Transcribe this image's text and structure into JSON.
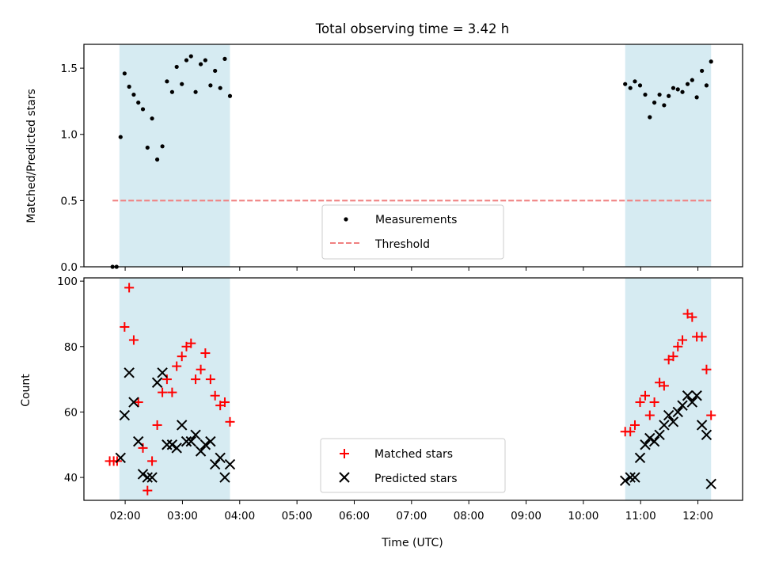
{
  "chart_data": [
    {
      "type": "scatter",
      "title": "Total observing time = 3.42 h",
      "ylabel": "Matched/Predicted stars",
      "ylim": [
        0,
        1.68
      ],
      "yticks": [
        "0.0",
        "0.5",
        "1.0",
        "1.5"
      ],
      "xlim": [
        1.28,
        12.78
      ],
      "observing_windows": [
        [
          1.9,
          3.83
        ],
        [
          10.73,
          12.23
        ]
      ],
      "threshold": {
        "value": 0.5,
        "color": "#f08080",
        "x_range": [
          1.78,
          12.23
        ]
      },
      "legend_position": "lower-center",
      "series": [
        {
          "name": "Measurements",
          "color": "#000000",
          "points": [
            [
              1.78,
              0.0
            ],
            [
              1.85,
              0.0
            ],
            [
              1.92,
              0.98
            ],
            [
              1.99,
              1.46
            ],
            [
              2.07,
              1.36
            ],
            [
              2.15,
              1.3
            ],
            [
              2.23,
              1.24
            ],
            [
              2.31,
              1.19
            ],
            [
              2.39,
              0.9
            ],
            [
              2.47,
              1.12
            ],
            [
              2.56,
              0.81
            ],
            [
              2.65,
              0.91
            ],
            [
              2.73,
              1.4
            ],
            [
              2.82,
              1.32
            ],
            [
              2.9,
              1.51
            ],
            [
              2.99,
              1.38
            ],
            [
              3.07,
              1.56
            ],
            [
              3.15,
              1.59
            ],
            [
              3.23,
              1.32
            ],
            [
              3.32,
              1.53
            ],
            [
              3.4,
              1.56
            ],
            [
              3.49,
              1.37
            ],
            [
              3.57,
              1.48
            ],
            [
              3.66,
              1.35
            ],
            [
              3.74,
              1.57
            ],
            [
              3.83,
              1.29
            ],
            [
              10.73,
              1.38
            ],
            [
              10.82,
              1.35
            ],
            [
              10.9,
              1.4
            ],
            [
              10.99,
              1.37
            ],
            [
              11.08,
              1.3
            ],
            [
              11.16,
              1.13
            ],
            [
              11.24,
              1.24
            ],
            [
              11.33,
              1.3
            ],
            [
              11.41,
              1.22
            ],
            [
              11.49,
              1.29
            ],
            [
              11.57,
              1.35
            ],
            [
              11.65,
              1.34
            ],
            [
              11.73,
              1.32
            ],
            [
              11.82,
              1.38
            ],
            [
              11.9,
              1.41
            ],
            [
              11.98,
              1.28
            ],
            [
              12.07,
              1.48
            ],
            [
              12.15,
              1.37
            ],
            [
              12.23,
              1.55
            ]
          ]
        },
        {
          "name": "Threshold",
          "color": "#f08080",
          "style": "dashed",
          "values": [
            0.5
          ]
        }
      ]
    },
    {
      "type": "scatter",
      "ylabel": "Count",
      "xlabel": "Time (UTC)",
      "ylim": [
        33,
        101
      ],
      "yticks": [
        "40",
        "60",
        "80",
        "100"
      ],
      "xlim": [
        1.28,
        12.78
      ],
      "xticks": [
        "02:00",
        "03:00",
        "04:00",
        "05:00",
        "06:00",
        "07:00",
        "08:00",
        "09:00",
        "10:00",
        "11:00",
        "12:00"
      ],
      "observing_windows": [
        [
          1.9,
          3.83
        ],
        [
          10.73,
          12.23
        ]
      ],
      "legend_position": "lower-center",
      "series": [
        {
          "name": "Matched stars",
          "color": "#ff0000",
          "marker": "+",
          "points": [
            [
              1.73,
              45
            ],
            [
              1.8,
              45
            ],
            [
              1.86,
              45
            ],
            [
              1.99,
              86
            ],
            [
              2.07,
              98
            ],
            [
              2.15,
              82
            ],
            [
              2.23,
              63
            ],
            [
              2.31,
              49
            ],
            [
              2.39,
              36
            ],
            [
              2.47,
              45
            ],
            [
              2.56,
              56
            ],
            [
              2.65,
              66
            ],
            [
              2.73,
              70
            ],
            [
              2.82,
              66
            ],
            [
              2.9,
              74
            ],
            [
              2.99,
              77
            ],
            [
              3.07,
              80
            ],
            [
              3.15,
              81
            ],
            [
              3.23,
              70
            ],
            [
              3.32,
              73
            ],
            [
              3.4,
              78
            ],
            [
              3.49,
              70
            ],
            [
              3.57,
              65
            ],
            [
              3.66,
              62
            ],
            [
              3.74,
              63
            ],
            [
              3.83,
              57
            ],
            [
              10.73,
              54
            ],
            [
              10.82,
              54
            ],
            [
              10.9,
              56
            ],
            [
              10.99,
              63
            ],
            [
              11.08,
              65
            ],
            [
              11.16,
              59
            ],
            [
              11.24,
              63
            ],
            [
              11.33,
              69
            ],
            [
              11.41,
              68
            ],
            [
              11.49,
              76
            ],
            [
              11.57,
              77
            ],
            [
              11.65,
              80
            ],
            [
              11.73,
              82
            ],
            [
              11.82,
              90
            ],
            [
              11.9,
              89
            ],
            [
              11.98,
              83
            ],
            [
              12.07,
              83
            ],
            [
              12.15,
              73
            ],
            [
              12.23,
              59
            ]
          ]
        },
        {
          "name": "Predicted stars",
          "color": "#000000",
          "marker": "x",
          "points": [
            [
              1.92,
              46
            ],
            [
              1.99,
              59
            ],
            [
              2.07,
              72
            ],
            [
              2.15,
              63
            ],
            [
              2.23,
              51
            ],
            [
              2.31,
              41
            ],
            [
              2.39,
              40
            ],
            [
              2.47,
              40
            ],
            [
              2.56,
              69
            ],
            [
              2.65,
              72
            ],
            [
              2.73,
              50
            ],
            [
              2.82,
              50
            ],
            [
              2.9,
              49
            ],
            [
              2.99,
              56
            ],
            [
              3.07,
              51
            ],
            [
              3.15,
              51
            ],
            [
              3.23,
              53
            ],
            [
              3.32,
              48
            ],
            [
              3.4,
              50
            ],
            [
              3.49,
              51
            ],
            [
              3.57,
              44
            ],
            [
              3.66,
              46
            ],
            [
              3.74,
              40
            ],
            [
              3.83,
              44
            ],
            [
              10.73,
              39
            ],
            [
              10.82,
              40
            ],
            [
              10.9,
              40
            ],
            [
              10.99,
              46
            ],
            [
              11.08,
              50
            ],
            [
              11.16,
              52
            ],
            [
              11.24,
              51
            ],
            [
              11.33,
              53
            ],
            [
              11.41,
              56
            ],
            [
              11.49,
              59
            ],
            [
              11.57,
              57
            ],
            [
              11.65,
              60
            ],
            [
              11.73,
              62
            ],
            [
              11.82,
              65
            ],
            [
              11.9,
              63
            ],
            [
              11.98,
              65
            ],
            [
              12.07,
              56
            ],
            [
              12.15,
              53
            ],
            [
              12.23,
              38
            ]
          ]
        }
      ]
    }
  ],
  "colors": {
    "window_fill": "#add8e6",
    "matched": "#ff0000",
    "predicted": "#000000",
    "measurement": "#000000",
    "threshold": "#f08080"
  }
}
